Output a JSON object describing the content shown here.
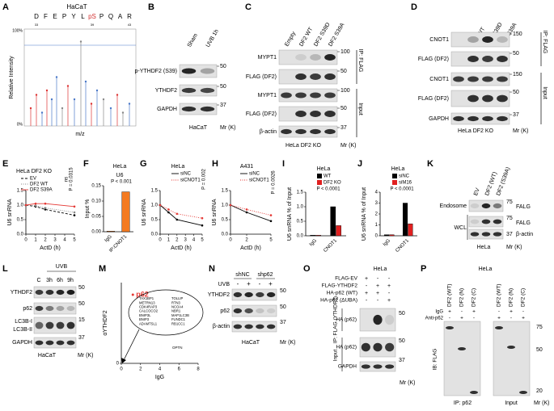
{
  "panels": {
    "A": {
      "letter": "A",
      "title": "HaCaT",
      "sequence": [
        "D",
        "F",
        "E",
        "P",
        "Y",
        "L",
        "pS",
        "P",
        "Q",
        "A",
        "R"
      ],
      "sequence_numbers": [
        33,
        39,
        43
      ],
      "ytop": "100%",
      "ybottom": "0%",
      "ylabel": "Relative Intensity",
      "xlabel": "m/z"
    },
    "B": {
      "letter": "B",
      "columns": [
        "Sham",
        "UVB 1h"
      ],
      "rows": [
        "p-YTHDF2 (S39)",
        "YTHDF2",
        "GAPDH"
      ],
      "markers": [
        50,
        50,
        37
      ],
      "cell": "HaCaT",
      "mr": "Mr (K)"
    },
    "C": {
      "letter": "C",
      "columns": [
        "Empty",
        "DF2 WT",
        "DF2 S39D",
        "DF2 S39A"
      ],
      "rows": [
        "MYPT1",
        "FLAG (DF2)",
        "MYPT1",
        "FLAG (DF2)",
        "β-actin"
      ],
      "markers": [
        100,
        50,
        100,
        50,
        37
      ],
      "groups": [
        "IP: FLAG",
        "Input"
      ],
      "cell": "HeLa DF2 KO",
      "mr": "Mr (K)"
    },
    "D": {
      "letter": "D",
      "columns": [
        "EV",
        "DF2 WT",
        "DF2 S39D",
        "DF2 S39A"
      ],
      "rows": [
        "CNOT1",
        "FLAG (DF2)",
        "CNOT1",
        "FLAG (DF2)",
        "GAPDH"
      ],
      "markers": [
        150,
        50,
        150,
        50,
        37
      ],
      "groups": [
        "IP: FLAG",
        "Input"
      ],
      "cell": "HeLa DF2 KO",
      "mr": "Mr (K)"
    },
    "E": {
      "letter": "E",
      "chart": {
        "type": "line",
        "title": "HeLa DF2 KO",
        "x": [
          0,
          1,
          2,
          5
        ],
        "xlim": [
          0,
          5
        ],
        "xticks": [
          0,
          1,
          2,
          3,
          4,
          5
        ],
        "ylim": [
          0,
          1.5
        ],
        "yticks": [
          {
            "value": 0,
            "label": "0.0"
          },
          {
            "value": 0.5,
            "label": "0.5"
          },
          {
            "value": 1,
            "label": "1.0"
          },
          {
            "value": 1.5,
            "label": "1.5"
          }
        ],
        "xlabel": "ActD (h)",
        "ylabel": "U6 snRNA",
        "series": [
          {
            "name": "EV",
            "color": "#000000",
            "line_style": "dashed",
            "values": [
              1,
              0.95,
              0.85,
              0.65
            ]
          },
          {
            "name": "DF2 WT",
            "color": "#888888",
            "line_style": "dotted",
            "values": [
              1,
              0.98,
              0.9,
              0.75
            ]
          },
          {
            "name": "DF2 S39A",
            "color": "#e53935",
            "line_style": "solid",
            "values": [
              1,
              1.05,
              1.05,
              0.95
            ]
          }
        ],
        "annotations": [
          "ns",
          "P = 0.0315"
        ]
      }
    },
    "F": {
      "letter": "F",
      "chart": {
        "type": "bar",
        "title": "HeLa",
        "subtitle": "U6",
        "categories": [
          "IgG",
          "IP:CNOT1"
        ],
        "values": [
          0.002,
          0.13
        ],
        "color": "#f47a20",
        "ylim": [
          0,
          0.15
        ],
        "yticks": [
          {
            "value": 0,
            "label": "0.00"
          },
          {
            "value": 0.05,
            "label": "0.05"
          },
          {
            "value": 0.1,
            "label": "0.10"
          },
          {
            "value": 0.15,
            "label": "0.15"
          }
        ],
        "ylabel": "Input %",
        "annotations": [
          "P < 0.001"
        ]
      }
    },
    "G": {
      "letter": "G",
      "chart": {
        "type": "line",
        "title": "HeLa",
        "x": [
          0,
          1,
          2,
          5
        ],
        "xlim": [
          0,
          5
        ],
        "xticks": [
          0,
          1,
          2,
          3,
          4,
          5
        ],
        "ylim": [
          0,
          1.5
        ],
        "yticks": [
          {
            "value": 0,
            "label": "0.0"
          },
          {
            "value": 0.5,
            "label": "0.5"
          },
          {
            "value": 1,
            "label": "1.0"
          },
          {
            "value": 1.5,
            "label": "1.5"
          }
        ],
        "xlabel": "ActD (h)",
        "ylabel": "U6 snRNA",
        "series": [
          {
            "name": "siNC",
            "color": "#000000",
            "line_style": "solid",
            "values": [
              1,
              0.75,
              0.5,
              0.3
            ]
          },
          {
            "name": "siCNOT1",
            "color": "#e53935",
            "line_style": "dotted",
            "values": [
              1,
              0.85,
              0.7,
              0.55
            ]
          }
        ],
        "annotations": [
          "P = 0.002"
        ]
      }
    },
    "H": {
      "letter": "H",
      "chart": {
        "type": "line",
        "title": "A431",
        "x": [
          0,
          2,
          5
        ],
        "xlim": [
          0,
          5
        ],
        "xticks": [
          0,
          2,
          5
        ],
        "ylim": [
          0,
          1.5
        ],
        "yticks": [
          {
            "value": 0,
            "label": "0.0"
          },
          {
            "value": 0.5,
            "label": "0.5"
          },
          {
            "value": 1,
            "label": "1.0"
          },
          {
            "value": 1.5,
            "label": "1.5"
          }
        ],
        "xlabel": "ActD (h)",
        "ylabel": "U6 snRNA",
        "series": [
          {
            "name": "siNC",
            "color": "#000000",
            "line_style": "solid",
            "values": [
              1,
              0.75,
              0.45
            ]
          },
          {
            "name": "siCNOT1",
            "color": "#e53935",
            "line_style": "dotted",
            "values": [
              1,
              0.85,
              0.65
            ]
          }
        ],
        "annotations": [
          "P = 0.0026"
        ]
      }
    },
    "I": {
      "letter": "I",
      "chart": {
        "type": "bar",
        "title": "HeLa",
        "categories": [
          "IgG",
          "CNOT1"
        ],
        "series": [
          {
            "name": "WT",
            "color": "#000000",
            "values": [
              0.02,
              1.0
            ]
          },
          {
            "name": "DF2 KO",
            "color": "#e02020",
            "values": [
              0.02,
              0.35
            ]
          }
        ],
        "ylim": [
          0,
          1.5
        ],
        "yticks": [
          {
            "value": 0,
            "label": "0.0"
          },
          {
            "value": 0.5,
            "label": "0.5"
          },
          {
            "value": 1,
            "label": "1.0"
          },
          {
            "value": 1.5,
            "label": "1.5"
          }
        ],
        "ylabel": "U6 snRNA % of Input",
        "annotations": [
          "P < 0.0001"
        ]
      }
    },
    "J": {
      "letter": "J",
      "chart": {
        "type": "bar",
        "title": "HeLa",
        "categories": [
          "IgG",
          "CNOT1"
        ],
        "series": [
          {
            "name": "siNC",
            "color": "#000000",
            "values": [
              0.1,
              3.0
            ]
          },
          {
            "name": "siM16",
            "color": "#e02020",
            "values": [
              0.1,
              1.1
            ]
          }
        ],
        "ylim": [
          0,
          4
        ],
        "yticks": [
          0,
          1,
          2,
          3,
          4
        ],
        "ylabel": "U6 snRNA % of Input",
        "annotations": [
          "P < 0.0001"
        ]
      }
    },
    "K": {
      "letter": "K",
      "columns": [
        "EV",
        "DF2 (WT)",
        "DF2 (S39A)"
      ],
      "rows": [
        "Endosome",
        "WCL"
      ],
      "bands": [
        "FALG",
        "FALG",
        "β-actin"
      ],
      "markers": [
        75,
        75,
        37
      ],
      "cell": "HeLa",
      "mr": "Mr (K)"
    },
    "L": {
      "letter": "L",
      "header": "UVB",
      "columns": [
        "C",
        "3h",
        "6h",
        "9h"
      ],
      "rows": [
        "YTHDF2",
        "p62",
        "LC3B-I",
        "LC3B-II",
        "GAPDH"
      ],
      "markers": [
        50,
        50,
        15,
        37
      ],
      "cell": "HaCaT",
      "mr": "Mr (K)"
    },
    "M": {
      "letter": "M",
      "chart": {
        "type": "scatter",
        "xlim": [
          0,
          8
        ],
        "xticks": [
          0,
          2,
          4,
          6,
          8
        ],
        "ylim": [
          0,
          20
        ],
        "yticks": [
          0
        ],
        "xlabel": "IgG",
        "ylabel": "αYTHDF2",
        "point_label": "p62",
        "point_color": "#e53935",
        "x": [
          1.2
        ],
        "y": [
          17
        ],
        "genes": [
          "TAX1BP1",
          "TOLLIP",
          "METRN13",
          "RTN3",
          "CDK4RAP3",
          "NCOA4",
          "CALCOCO2",
          "NBR1",
          "BNIP3L",
          "MAP1LC3B",
          "BNIP3",
          "FUNDC1",
          "ADAMTSL1",
          "RB1CC1"
        ],
        "outside_gene": "OPTN"
      }
    },
    "N": {
      "letter": "N",
      "headers": [
        "shNC",
        "shp62"
      ],
      "uvb": "UVB",
      "uvb_signs": [
        "-",
        "+",
        "-",
        "+"
      ],
      "rows": [
        "YTHDF2",
        "p62",
        "β-actin"
      ],
      "markers": [
        50,
        50,
        37
      ],
      "cell": "HaCaT",
      "mr": "Mr (K)"
    },
    "O": {
      "letter": "O",
      "cell": "HeLa",
      "conditions": [
        {
          "name": "FLAG-EV",
          "signs": [
            "+",
            "-",
            "-"
          ]
        },
        {
          "name": "FLAG-YTHDF2",
          "signs": [
            "-",
            "+",
            "+"
          ]
        },
        {
          "name": "HA-p62 (WT)",
          "signs": [
            "+",
            "+",
            "-"
          ]
        },
        {
          "name": "HA-p62 (ΔUBA)",
          "signs": [
            "-",
            "-",
            "+"
          ]
        }
      ],
      "rows": [
        "HA (p62)",
        "HA (p62)",
        "GAPDH"
      ],
      "groups": [
        "IP: FLAG (YTHDF2)",
        "Input"
      ],
      "markers": [
        50,
        50,
        37
      ],
      "mr": "Mr (K)"
    },
    "P": {
      "letter": "P",
      "cell": "HeLa",
      "columns": [
        "DF2 (WT)",
        "DF2 (N)",
        "DF2 (C)",
        "DF2 (WT)",
        "DF2 (N)",
        "DF2 (C)"
      ],
      "conditions": [
        {
          "name": "IgG",
          "signs": [
            "+",
            "-",
            "+",
            "-",
            "+",
            "-"
          ]
        },
        {
          "name": "Anti-p62",
          "signs": [
            "-",
            "+",
            "-",
            "+",
            "-",
            "+"
          ]
        }
      ],
      "side": "IB: FLAG",
      "bottom": [
        "IP: p62",
        "Input"
      ],
      "markers": [
        75,
        50,
        20
      ],
      "mr": "Mr (K)"
    }
  }
}
